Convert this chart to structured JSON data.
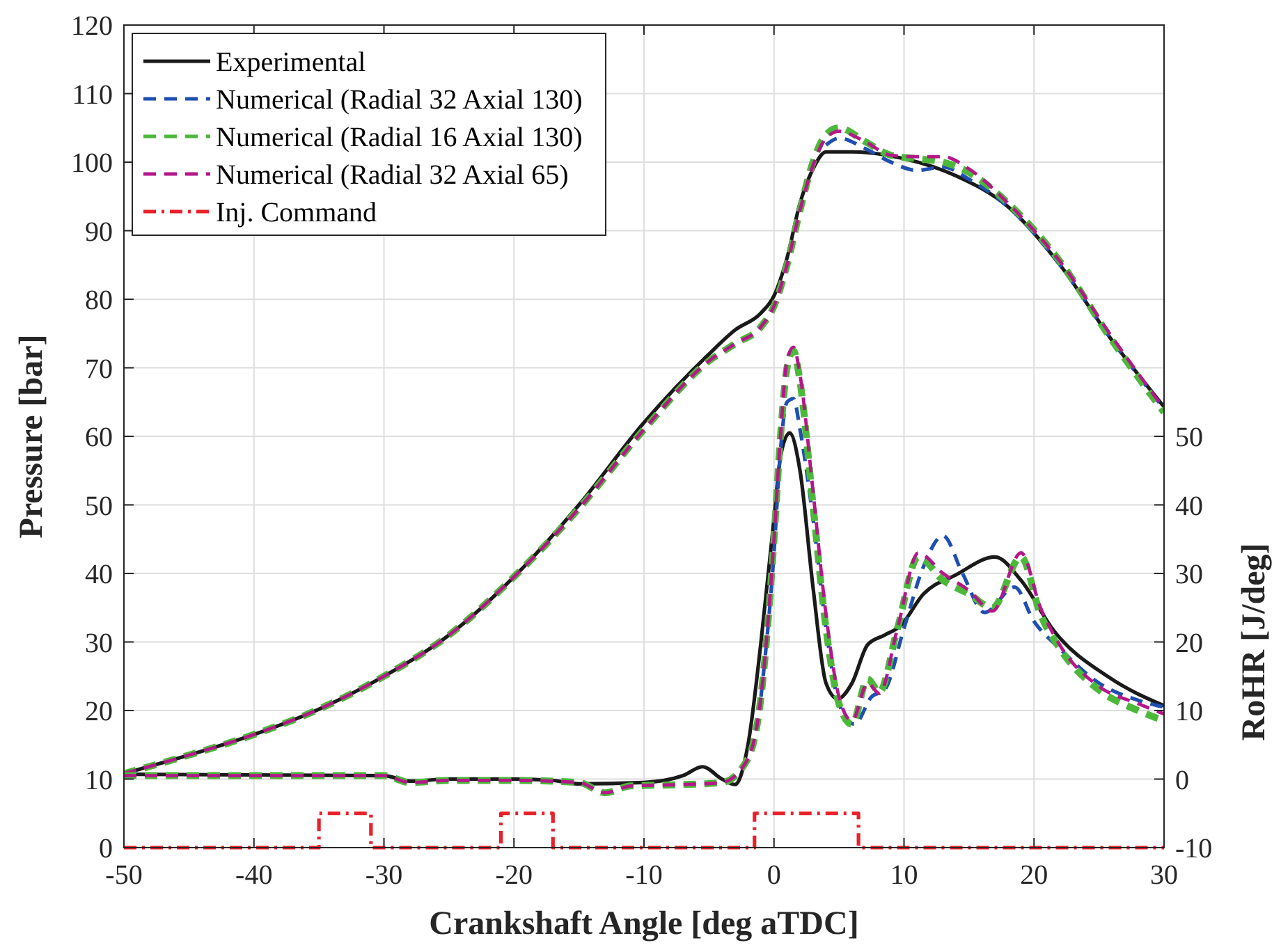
{
  "chart_data": {
    "type": "line",
    "xlabel": "Crankshaft Angle [deg aTDC]",
    "ylabel": "Pressure [bar]",
    "y2label": "RoHR [J/deg]",
    "xlim": [
      -50,
      30
    ],
    "xticks": [
      -50,
      -40,
      -30,
      -20,
      -10,
      0,
      10,
      20,
      30
    ],
    "ylim": [
      0,
      120
    ],
    "yticks": [
      0,
      10,
      20,
      30,
      40,
      50,
      60,
      70,
      80,
      90,
      100,
      110,
      120
    ],
    "y2lim": [
      -10,
      110
    ],
    "y2ticks": [
      -10,
      0,
      10,
      20,
      30,
      40,
      50
    ],
    "grid": true,
    "legend": "top left",
    "marker": "none",
    "series": [
      {
        "name": "Experimental",
        "color": "#1a1a1a",
        "line_style": "solid",
        "x": [
          -50,
          -45,
          -40,
          -35,
          -30,
          -25,
          -20,
          -15,
          -10,
          -5,
          -3,
          -1,
          0,
          1,
          2,
          3,
          4,
          6,
          10,
          14,
          18,
          22,
          26,
          30
        ],
        "values": [
          10.8,
          13.5,
          16.5,
          20.2,
          25,
          31,
          39.5,
          50,
          62,
          72,
          75.5,
          78,
          80.5,
          86,
          94,
          99,
          101.5,
          101.5,
          100.5,
          98,
          93.5,
          85,
          74,
          64.3
        ]
      },
      {
        "name": "Numerical (Radial 32 Axial 130)",
        "color": "#1f4fb0",
        "line_style": "dashed",
        "x": [
          4,
          5,
          7,
          9,
          11,
          13,
          15,
          18,
          22,
          26,
          30
        ],
        "values": [
          102.5,
          103.5,
          102,
          100,
          98.8,
          99.3,
          97.5,
          93.5,
          85,
          74,
          64
        ]
      },
      {
        "name": "Numerical (Radial 16 Axial 130)",
        "color": "#4cb83a",
        "line_style": "dashed",
        "x": [
          -50,
          -45,
          -40,
          -35,
          -30,
          -25,
          -20,
          -15,
          -10,
          -5,
          -3,
          -1,
          0,
          1,
          2,
          3,
          4,
          5,
          7,
          9,
          11,
          13,
          15,
          18,
          22,
          26,
          30
        ],
        "values": [
          10.8,
          13.5,
          16.5,
          20.2,
          25,
          31,
          39.5,
          49.5,
          61,
          71,
          73.5,
          76,
          79,
          85,
          93,
          100,
          104,
          105,
          103,
          101,
          100.5,
          100,
          98.5,
          94,
          85.5,
          74,
          63.5
        ]
      },
      {
        "name": "Numerical (Radial 32 Axial 65)",
        "color": "#b5178a",
        "line_style": "dashed",
        "x": [
          -50,
          -45,
          -40,
          -35,
          -30,
          -25,
          -20,
          -15,
          -10,
          -5,
          -3,
          -1,
          0,
          1,
          2,
          3,
          4,
          5,
          7,
          9,
          11,
          13,
          15,
          18,
          22,
          26,
          30
        ],
        "values": [
          10.8,
          13.5,
          16.5,
          20.2,
          25,
          31,
          39.5,
          49.5,
          61,
          71,
          73.5,
          76,
          79,
          85,
          93,
          99.5,
          103.5,
          104.5,
          103,
          101,
          100.8,
          100.8,
          99,
          94,
          85.5,
          74.5,
          64
        ]
      },
      {
        "name": "Inj. Command",
        "color": "#e8202a",
        "line_style": "dashdot",
        "type": "step",
        "x": [
          -50,
          -35,
          -31,
          -21,
          -17,
          -1.5,
          6.5,
          30
        ],
        "values": [
          0,
          5,
          0,
          5,
          0,
          5,
          0,
          0
        ]
      },
      {
        "color": "#1a1a1a",
        "line_style": "solid",
        "axis": "y2",
        "x": [
          -50,
          -30,
          -28,
          -25,
          -20,
          -17,
          -15,
          -10,
          -7,
          -5.5,
          -4,
          -3,
          -2,
          -1,
          0,
          0.5,
          1.2,
          2,
          3,
          4,
          4.9,
          6,
          7.2,
          8.5,
          9.7,
          11.5,
          14,
          17,
          19,
          21.5,
          25.8,
          30
        ],
        "values": [
          0.7,
          0.5,
          -0.3,
          0,
          0,
          -0.2,
          -0.7,
          -0.5,
          0.5,
          1.8,
          0,
          -0.8,
          5,
          20,
          38,
          47,
          50.5,
          45,
          28,
          14,
          11.7,
          14,
          19.6,
          21,
          22.3,
          27,
          29.8,
          32.4,
          29,
          21.7,
          14.8,
          10.7
        ]
      },
      {
        "color": "#1f4fb0",
        "line_style": "dashed",
        "axis": "y2",
        "x": [
          -1,
          0,
          0.5,
          1,
          1.5,
          2,
          3,
          4,
          5,
          6.2,
          7.5,
          8.5,
          10,
          11.5,
          13,
          14.5,
          16.2,
          18.5,
          20,
          22,
          25,
          28,
          30
        ],
        "values": [
          12,
          33,
          48,
          55,
          55.5,
          51,
          38,
          22,
          11,
          8,
          12,
          13,
          22,
          31,
          35.5,
          30,
          24.3,
          28,
          23,
          19,
          14,
          11.5,
          10.5
        ]
      },
      {
        "color": "#4cb83a",
        "line_style": "dashed",
        "axis": "y2",
        "x": [
          -50,
          -30,
          -28,
          -25,
          -20,
          -15,
          -13,
          -11,
          -7,
          -4,
          -2,
          -1,
          0,
          0.5,
          1,
          1.5,
          2,
          3,
          4,
          5,
          6,
          7.2,
          8.1,
          9.5,
          11.1,
          13,
          15,
          16.8,
          19,
          20.5,
          22,
          25,
          28,
          30
        ],
        "values": [
          0.5,
          0.5,
          -0.5,
          -0.2,
          -0.2,
          -0.5,
          -2,
          -1,
          -0.8,
          -0.5,
          3,
          12,
          35,
          50,
          60,
          62.5,
          58,
          40,
          22,
          11,
          8,
          14.6,
          12.7,
          22,
          32.4,
          29,
          27,
          25,
          32.4,
          24,
          19,
          13,
          10,
          8.5
        ]
      },
      {
        "color": "#b5178a",
        "line_style": "dashed",
        "axis": "y2",
        "x": [
          -50,
          -30,
          -28,
          -25,
          -20,
          -15,
          -13,
          -11,
          -7,
          -4,
          -2,
          -1,
          0,
          0.5,
          1,
          1.5,
          2,
          3,
          4,
          5,
          6,
          7.2,
          8.1,
          9.5,
          11.1,
          13,
          15,
          16.8,
          19,
          20.5,
          22,
          25,
          28,
          30
        ],
        "values": [
          0.5,
          0.5,
          -0.5,
          -0.2,
          -0.2,
          -0.5,
          -2,
          -1,
          -0.8,
          -0.5,
          3,
          12,
          35,
          50,
          61,
          63,
          59,
          42,
          24,
          12,
          8.5,
          14,
          12.5,
          22,
          33,
          30,
          27.5,
          24.5,
          33,
          25,
          19.5,
          13.5,
          11,
          9.5
        ]
      }
    ]
  }
}
